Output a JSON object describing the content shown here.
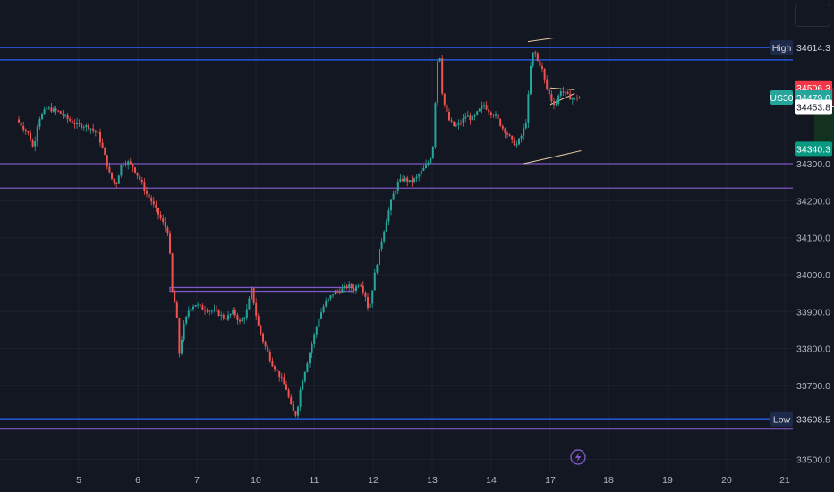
{
  "colors": {
    "background": "#131722",
    "up": "#26a69a",
    "down": "#ef5350",
    "blue_line": "#2962ff",
    "purple_line": "#7e57c2",
    "channel": "#e0c9a0",
    "zone_red": "#5c1f28",
    "zone_green": "#12331f",
    "tick_text": "#b2b5be",
    "grid": "#1e2230"
  },
  "chart_data": {
    "type": "candlestick",
    "x_ticks": [
      "5",
      "6",
      "7",
      "10",
      "11",
      "12",
      "13",
      "14",
      "17",
      "18",
      "19",
      "20",
      "21"
    ],
    "y_ticks": [
      "34300.0",
      "34200.0",
      "34100.0",
      "34000.0",
      "33900.0",
      "33800.0",
      "33700.0",
      "33500.0"
    ],
    "y_range": [
      33490,
      34690
    ],
    "horizontal_lines": [
      {
        "price": 34614.3,
        "color": "blue"
      },
      {
        "price": 34581,
        "color": "blue"
      },
      {
        "price": 34300,
        "color": "purple"
      },
      {
        "price": 34234,
        "color": "purple"
      },
      {
        "price": 33610,
        "color": "blue"
      },
      {
        "price": 33582,
        "color": "purple"
      }
    ],
    "price_tags": [
      {
        "label": "High",
        "value": "34614.3",
        "kind": "high"
      },
      {
        "label": "",
        "value": "34506.3",
        "kind": "stop"
      },
      {
        "label": "US30",
        "value": "34479.0",
        "kind": "current"
      },
      {
        "label": "",
        "value": "34453.8",
        "kind": "entry"
      },
      {
        "label": "",
        "value": "34340.3",
        "kind": "target"
      },
      {
        "label": "Low",
        "value": "33608.5",
        "kind": "low"
      }
    ],
    "position_zone": {
      "stop": 34506.3,
      "entry": 34453.8,
      "target": 34340.3,
      "x_start_day": 17.5,
      "x_end_day": 18.05
    },
    "price_path": [
      [
        4.0,
        34420
      ],
      [
        4.1,
        34400
      ],
      [
        4.2,
        34380
      ],
      [
        4.28,
        34340
      ],
      [
        4.36,
        34420
      ],
      [
        4.5,
        34450
      ],
      [
        4.7,
        34440
      ],
      [
        4.85,
        34420
      ],
      [
        5.0,
        34405
      ],
      [
        5.2,
        34400
      ],
      [
        5.35,
        34380
      ],
      [
        5.45,
        34330
      ],
      [
        5.55,
        34270
      ],
      [
        5.65,
        34240
      ],
      [
        5.75,
        34300
      ],
      [
        5.85,
        34305
      ],
      [
        5.95,
        34290
      ],
      [
        6.05,
        34260
      ],
      [
        6.15,
        34225
      ],
      [
        6.25,
        34200
      ],
      [
        6.35,
        34170
      ],
      [
        6.45,
        34140
      ],
      [
        6.55,
        34110
      ],
      [
        6.6,
        33960
      ],
      [
        6.68,
        33900
      ],
      [
        6.72,
        33780
      ],
      [
        6.8,
        33860
      ],
      [
        6.9,
        33910
      ],
      [
        7.0,
        33920
      ],
      [
        7.1,
        33910
      ],
      [
        7.2,
        33905
      ],
      [
        7.35,
        33900
      ],
      [
        7.5,
        33880
      ],
      [
        7.65,
        33900
      ],
      [
        7.75,
        33870
      ],
      [
        7.85,
        33890
      ],
      [
        7.95,
        33960
      ],
      [
        8.05,
        33870
      ],
      [
        8.15,
        33820
      ],
      [
        8.3,
        33760
      ],
      [
        8.45,
        33720
      ],
      [
        8.55,
        33690
      ],
      [
        8.65,
        33630
      ],
      [
        8.72,
        33620
      ],
      [
        8.8,
        33700
      ],
      [
        8.9,
        33760
      ],
      [
        9.0,
        33820
      ],
      [
        9.1,
        33880
      ],
      [
        9.2,
        33920
      ],
      [
        9.35,
        33950
      ],
      [
        9.5,
        33960
      ],
      [
        9.6,
        33970
      ],
      [
        9.7,
        33960
      ],
      [
        9.8,
        33980
      ],
      [
        9.9,
        33940
      ],
      [
        9.95,
        33900
      ],
      [
        10.05,
        34000
      ],
      [
        10.15,
        34080
      ],
      [
        10.25,
        34150
      ],
      [
        10.35,
        34210
      ],
      [
        10.45,
        34250
      ],
      [
        10.55,
        34260
      ],
      [
        10.65,
        34250
      ],
      [
        10.75,
        34260
      ],
      [
        10.85,
        34280
      ],
      [
        10.95,
        34300
      ],
      [
        11.0,
        34320
      ],
      [
        11.05,
        34360
      ],
      [
        11.1,
        34570
      ],
      [
        11.15,
        34600
      ],
      [
        11.2,
        34480
      ],
      [
        11.3,
        34420
      ],
      [
        11.4,
        34400
      ],
      [
        11.5,
        34410
      ],
      [
        11.6,
        34430
      ],
      [
        11.7,
        34420
      ],
      [
        11.8,
        34440
      ],
      [
        11.9,
        34460
      ],
      [
        12.0,
        34440
      ],
      [
        12.1,
        34430
      ],
      [
        12.2,
        34400
      ],
      [
        12.3,
        34380
      ],
      [
        12.38,
        34360
      ],
      [
        12.45,
        34350
      ],
      [
        12.55,
        34380
      ],
      [
        12.62,
        34420
      ],
      [
        12.7,
        34580
      ],
      [
        12.75,
        34610
      ],
      [
        12.8,
        34580
      ],
      [
        12.88,
        34560
      ],
      [
        12.95,
        34510
      ],
      [
        13.05,
        34470
      ],
      [
        13.12,
        34460
      ],
      [
        13.2,
        34500
      ],
      [
        13.28,
        34490
      ],
      [
        13.35,
        34480
      ],
      [
        13.45,
        34475
      ],
      [
        13.5,
        34480
      ]
    ]
  }
}
